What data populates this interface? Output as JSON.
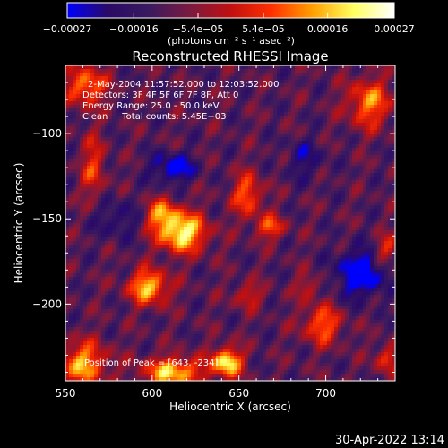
{
  "chart_data": {
    "type": "heatmap",
    "title": "Reconstructed RHESSI Image",
    "xlabel": "Heliocentric X (arcsec)",
    "ylabel": "Heliocentric Y (arcsec)",
    "xlim": [
      550,
      740
    ],
    "ylim": [
      -245,
      -60
    ],
    "x_ticks": [
      550,
      600,
      650,
      700
    ],
    "y_ticks": [
      -100,
      -150,
      -200
    ],
    "x_tick_labels": [
      "550",
      "600",
      "650",
      "700"
    ],
    "y_tick_labels": [
      "−100",
      "−150",
      "−200"
    ],
    "colorbar": {
      "range": [
        -0.00027,
        0.00027
      ],
      "ticks": [
        -0.00027,
        -0.00016,
        -5.4e-05,
        5.4e-05,
        0.00016,
        0.00027
      ],
      "tick_labels": [
        "−0.00027",
        "−0.00016",
        "−5.4e−05",
        "5.4e−05",
        "0.00016",
        "0.00027"
      ],
      "unit_label": "(photons cm⁻² s⁻¹ asec⁻²)",
      "colors": [
        "#0000ff",
        "#2a0a66",
        "#3a1a60",
        "#7a1a40",
        "#c01010",
        "#ff3000",
        "#ffa000",
        "#ffff60",
        "#ffffff"
      ]
    },
    "annotations": [
      "2-May-2004 11:57:52.000 to 12:03:52.000",
      "Detectors: 3F 4F 5F 6F 7F 8F, Att 0",
      "Energy Range: 25.0 - 50.0 keV",
      "Clean     Total counts: 5.45E+03"
    ],
    "peak_label": "Position of Peak = [643, -234]",
    "peak": [
      643,
      -234
    ],
    "sources": [
      {
        "x": 598,
        "y": -190,
        "sx": 8,
        "sy": 7,
        "a": 0.85
      },
      {
        "x": 617,
        "y": -158,
        "sx": 10,
        "sy": 8,
        "a": 1.0
      },
      {
        "x": 605,
        "y": -147,
        "sx": 7,
        "sy": 6,
        "a": 0.6
      },
      {
        "x": 560,
        "y": -235,
        "sx": 10,
        "sy": 9,
        "a": 0.75
      },
      {
        "x": 612,
        "y": -240,
        "sx": 12,
        "sy": 6,
        "a": 0.85
      },
      {
        "x": 643,
        "y": -234,
        "sx": 6,
        "sy": 6,
        "a": 1.0
      },
      {
        "x": 655,
        "y": -136,
        "sx": 6,
        "sy": 9,
        "a": 0.6
      },
      {
        "x": 668,
        "y": -155,
        "sx": 6,
        "sy": 5,
        "a": 0.55
      },
      {
        "x": 562,
        "y": -72,
        "sx": 8,
        "sy": 8,
        "a": 0.7
      },
      {
        "x": 566,
        "y": -120,
        "sx": 5,
        "sy": 14,
        "a": 0.45
      },
      {
        "x": 725,
        "y": -82,
        "sx": 9,
        "sy": 10,
        "a": 0.65
      },
      {
        "x": 698,
        "y": -212,
        "sx": 8,
        "sy": 8,
        "a": 0.6
      },
      {
        "x": 655,
        "y": -195,
        "sx": 6,
        "sy": 5,
        "a": 0.4
      },
      {
        "x": 735,
        "y": -168,
        "sx": 5,
        "sy": 6,
        "a": 0.45
      },
      {
        "x": 690,
        "y": -190,
        "sx": 5,
        "sy": 5,
        "a": 0.35
      },
      {
        "x": 735,
        "y": -232,
        "sx": 5,
        "sy": 6,
        "a": 0.45
      },
      {
        "x": 612,
        "y": -120,
        "sx": 9,
        "sy": 6,
        "a": -0.55
      },
      {
        "x": 720,
        "y": -182,
        "sx": 10,
        "sy": 10,
        "a": -0.65
      },
      {
        "x": 580,
        "y": -150,
        "sx": 10,
        "sy": 8,
        "a": -0.3
      },
      {
        "x": 688,
        "y": -115,
        "sx": 8,
        "sy": 8,
        "a": -0.3
      }
    ]
  },
  "footer": {
    "timestamp": "30-Apr-2022 13:14"
  }
}
